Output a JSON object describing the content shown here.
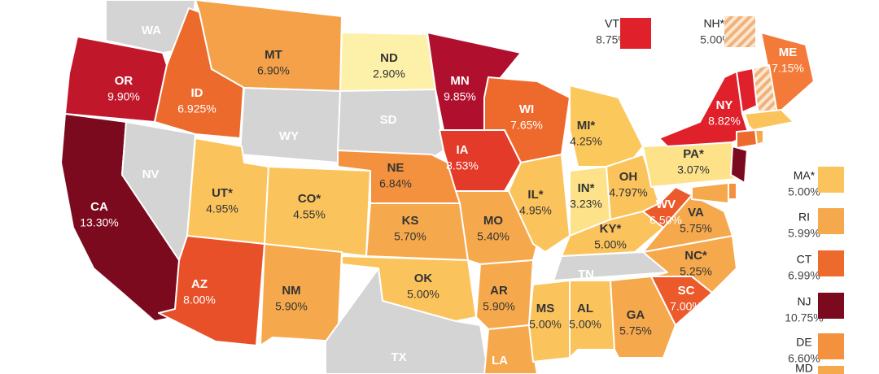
{
  "states": [
    {
      "abbr": "WA",
      "color": "#d4d4d4"
    },
    {
      "abbr": "OR",
      "rate": "9.90%",
      "color": "#c0182a"
    },
    {
      "abbr": "CA",
      "rate": "13.30%",
      "color": "#7c0a1f"
    },
    {
      "abbr": "NV",
      "color": "#d4d4d4"
    },
    {
      "abbr": "ID",
      "rate": "6.925%",
      "color": "#ec6a2c"
    },
    {
      "abbr": "MT",
      "rate": "6.90%",
      "color": "#f4a14a"
    },
    {
      "abbr": "WY",
      "color": "#d4d4d4"
    },
    {
      "abbr": "UT*",
      "rate": "4.95%",
      "color": "#fbc35c"
    },
    {
      "abbr": "CO*",
      "rate": "4.55%",
      "color": "#fbc35c"
    },
    {
      "abbr": "AZ",
      "rate": "8.00%",
      "color": "#e8502a"
    },
    {
      "abbr": "NM",
      "rate": "5.90%",
      "color": "#f6a94c"
    },
    {
      "abbr": "ND",
      "rate": "2.90%",
      "color": "#fdf0a8"
    },
    {
      "abbr": "SD",
      "color": "#d4d4d4"
    },
    {
      "abbr": "NE",
      "rate": "6.84%",
      "color": "#f4913e"
    },
    {
      "abbr": "KS",
      "rate": "5.70%",
      "color": "#f6a94c"
    },
    {
      "abbr": "OK",
      "rate": "5.00%",
      "color": "#fbc35c"
    },
    {
      "abbr": "TX",
      "color": "#d4d4d4"
    },
    {
      "abbr": "MN",
      "rate": "9.85%",
      "color": "#b0102e"
    },
    {
      "abbr": "IA",
      "rate": "8.53%",
      "color": "#e43a2a"
    },
    {
      "abbr": "MO",
      "rate": "5.40%",
      "color": "#f6a94c"
    },
    {
      "abbr": "AR",
      "rate": "5.90%",
      "color": "#f6a94c"
    },
    {
      "abbr": "LA",
      "color": "#f6a94c"
    },
    {
      "abbr": "WI",
      "rate": "7.65%",
      "color": "#ee6a2c"
    },
    {
      "abbr": "IL*",
      "rate": "4.95%",
      "color": "#fbc35c"
    },
    {
      "abbr": "MI*",
      "rate": "4.25%",
      "color": "#fbc85c"
    },
    {
      "abbr": "IN*",
      "rate": "3.23%",
      "color": "#fde28a"
    },
    {
      "abbr": "OH",
      "rate": "4.797%",
      "color": "#fbc35c"
    },
    {
      "abbr": "KY*",
      "rate": "5.00%",
      "color": "#fbc35c"
    },
    {
      "abbr": "TN",
      "color": "#d4d4d4"
    },
    {
      "abbr": "MS",
      "rate": "5.00%",
      "color": "#fbc35c"
    },
    {
      "abbr": "AL",
      "rate": "5.00%",
      "color": "#fbc35c"
    },
    {
      "abbr": "GA",
      "rate": "5.75%",
      "color": "#f6a94c"
    },
    {
      "abbr": "SC",
      "rate": "7.00%",
      "color": "#ec5a2c"
    },
    {
      "abbr": "NC*",
      "rate": "5.25%",
      "color": "#f6a94c"
    },
    {
      "abbr": "VA",
      "rate": "5.75%",
      "color": "#f6a94c"
    },
    {
      "abbr": "WV",
      "rate": "6.50%",
      "color": "#ec5a2c"
    },
    {
      "abbr": "PA*",
      "rate": "3.07%",
      "color": "#fde28a"
    },
    {
      "abbr": "NY",
      "rate": "8.82%",
      "color": "#e0202a"
    },
    {
      "abbr": "ME",
      "rate": "7.15%",
      "color": "#f47a3a"
    }
  ],
  "callouts": [
    {
      "abbr": "VT",
      "rate": "8.75%",
      "color": "#e0202a"
    },
    {
      "abbr": "NH**",
      "rate": "5.00%",
      "color": "#f0b27a",
      "pattern": "hatched"
    },
    {
      "abbr": "MA*",
      "rate": "5.00%",
      "color": "#fbc35c"
    },
    {
      "abbr": "RI",
      "rate": "5.99%",
      "color": "#f6a94c"
    },
    {
      "abbr": "CT",
      "rate": "6.99%",
      "color": "#ec6a2c"
    },
    {
      "abbr": "NJ",
      "rate": "10.75%",
      "color": "#7c0a1f"
    },
    {
      "abbr": "DE",
      "rate": "6.60%",
      "color": "#f4913e"
    },
    {
      "abbr": "MD",
      "color": "#f6a94c"
    }
  ]
}
